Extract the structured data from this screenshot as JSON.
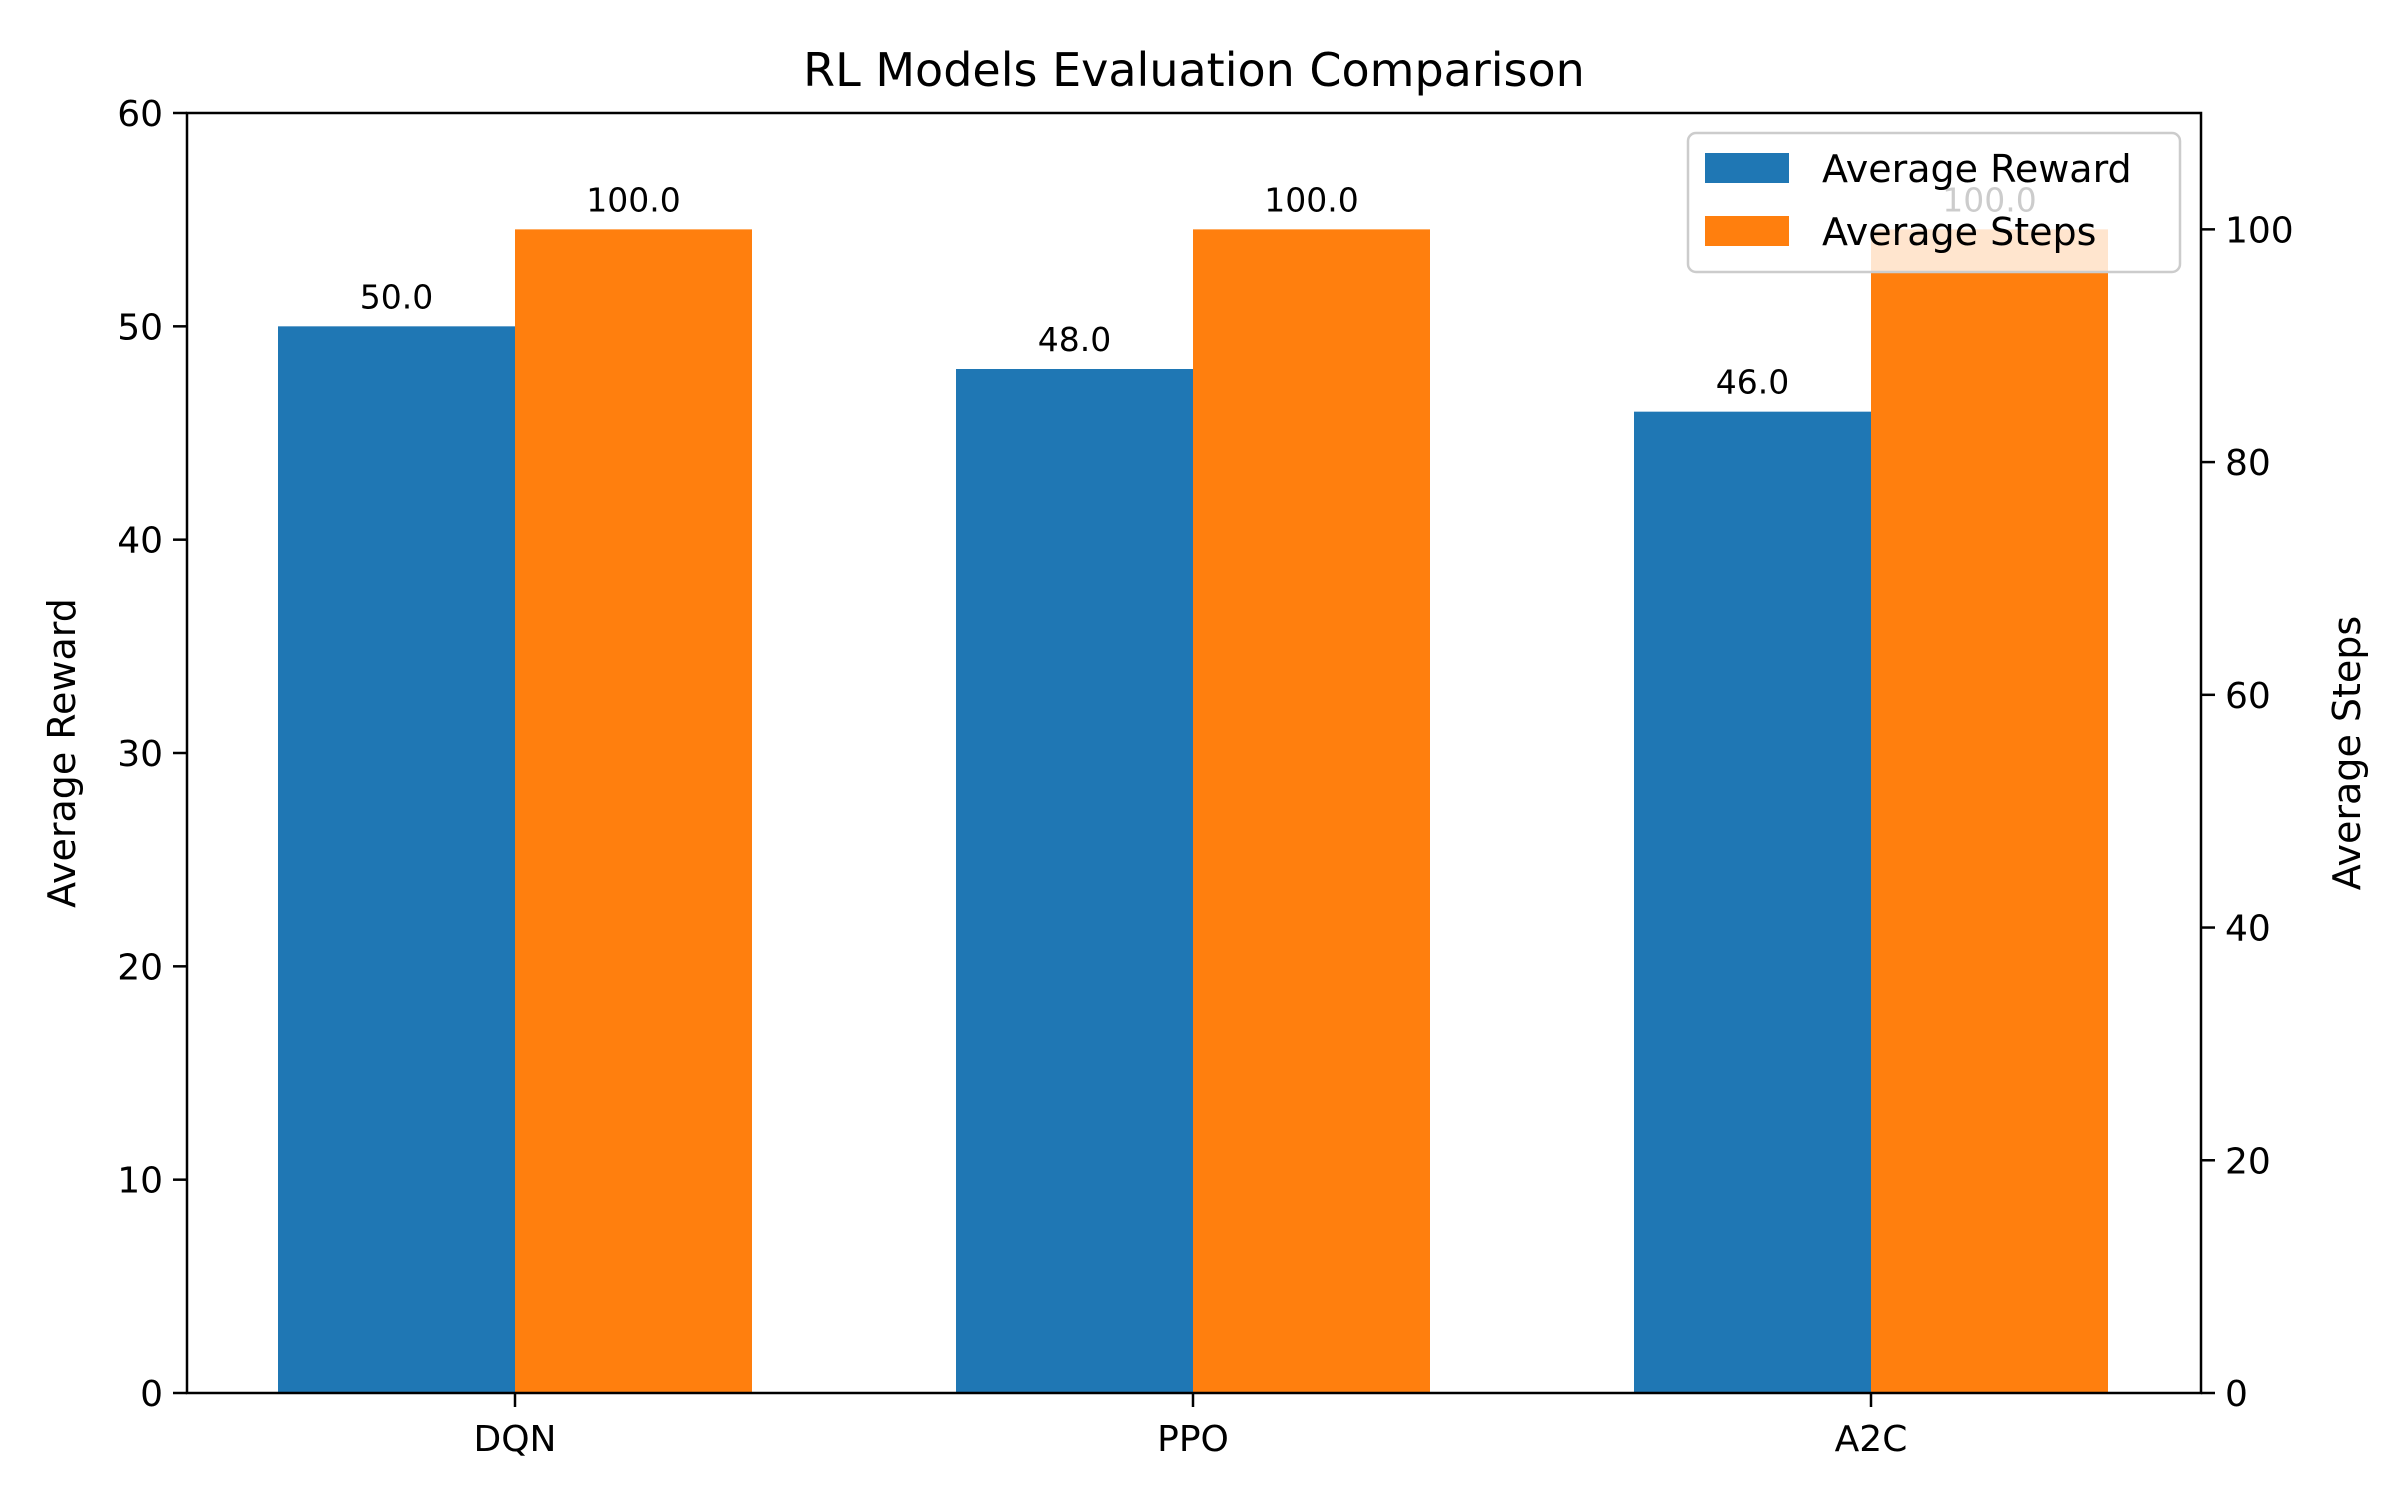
{
  "chart_data": {
    "type": "bar",
    "title": "RL Models Evaluation Comparison",
    "categories": [
      "DQN",
      "PPO",
      "A2C"
    ],
    "series": [
      {
        "name": "Average Reward",
        "axis": "left",
        "color": "#1f77b4",
        "values": [
          50.0,
          48.0,
          46.0
        ],
        "labels": [
          "50.0",
          "48.0",
          "46.0"
        ]
      },
      {
        "name": "Average Steps",
        "axis": "right",
        "color": "#ff7f0e",
        "values": [
          100.0,
          100.0,
          100.0
        ],
        "labels": [
          "100.0",
          "100.0",
          "100.0"
        ]
      }
    ],
    "y_left": {
      "label": "Average Reward",
      "lim": [
        0,
        60
      ],
      "ticks": [
        0,
        10,
        20,
        30,
        40,
        50,
        60
      ],
      "tick_labels": [
        "0",
        "10",
        "20",
        "30",
        "40",
        "50",
        "60"
      ]
    },
    "y_right": {
      "label": "Average Steps",
      "lim": [
        0,
        110
      ],
      "ticks": [
        0,
        20,
        40,
        60,
        80,
        100
      ],
      "tick_labels": [
        "0",
        "20",
        "40",
        "60",
        "80",
        "100"
      ]
    },
    "grid": false,
    "legend_position": "top-right"
  }
}
